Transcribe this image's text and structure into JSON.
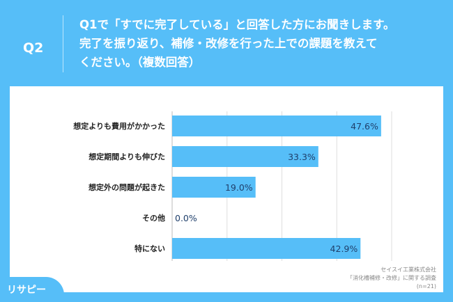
{
  "header": {
    "question_number": "Q2",
    "title_lines": [
      "Q1で「すでに完了している」と回答した方にお聞きします。",
      "完了を振り返り、補修・改修を行った上での課題を教えて",
      "ください。（複数回答）"
    ]
  },
  "chart_data": {
    "type": "bar",
    "orientation": "horizontal",
    "categories": [
      "想定よりも費用がかかった",
      "想定期間よりも伸びた",
      "想定外の問題が起きた",
      "その他",
      "特にない"
    ],
    "values": [
      47.6,
      33.3,
      19.0,
      0.0,
      42.9
    ],
    "data_labels": [
      "47.6%",
      "33.3%",
      "19.0%",
      "0.0%",
      "42.9%"
    ],
    "xlim": [
      0,
      50
    ],
    "grid": true,
    "bar_color": "#56bef8",
    "unit": "%"
  },
  "source": {
    "lines": [
      "セイスイ工業株式会社",
      "「消化槽補修・改修」に関する調査",
      "(n=21)"
    ]
  },
  "logo": {
    "text": "リサピー"
  }
}
